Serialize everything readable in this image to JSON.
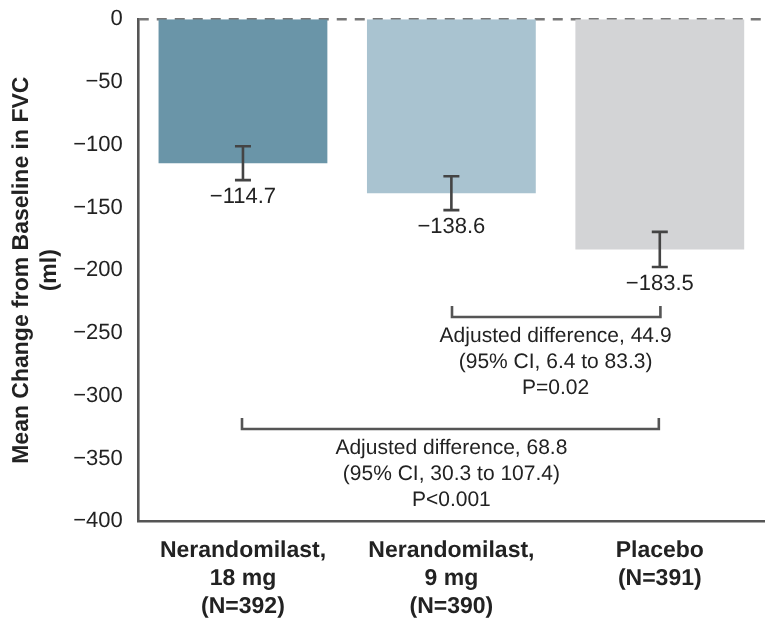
{
  "chart_data": {
    "type": "bar",
    "ylabel": "Mean Change from Baseline in FVC\n(ml)",
    "categories": [
      "Nerandomilast,\n18 mg\n(N=392)",
      "Nerandomilast,\n9 mg\n(N=390)",
      "Placebo\n(N=391)"
    ],
    "values": [
      -114.7,
      -138.6,
      -183.5
    ],
    "colors": [
      "#6a95a8",
      "#a9c3d0",
      "#d3d4d6"
    ],
    "errors": [
      13.5,
      13.5,
      14
    ],
    "value_labels": [
      "−114.7",
      "−138.6",
      "−183.5"
    ],
    "ylim": [
      -400,
      0
    ],
    "yticks": [
      {
        "value": -400,
        "label": "−400"
      },
      {
        "value": -350,
        "label": "−350"
      },
      {
        "value": -300,
        "label": "−300"
      },
      {
        "value": -250,
        "label": "−250"
      },
      {
        "value": -200,
        "label": "−200"
      },
      {
        "value": -150,
        "label": "−150"
      },
      {
        "value": -100,
        "label": "−100"
      },
      {
        "value": -50,
        "label": "−50"
      },
      0
    ],
    "ref_lines": [
      {
        "axis": "y",
        "value": 0,
        "color": "#777777",
        "line_style": "dashed"
      }
    ],
    "annotations": [
      "Adjusted difference, 44.9\n(95% CI, 6.4 to 83.3)\nP=0.02",
      "Adjusted difference, 68.8\n(95% CI, 30.3 to 107.4)\nP<0.001"
    ],
    "grid": false,
    "legend": false
  }
}
